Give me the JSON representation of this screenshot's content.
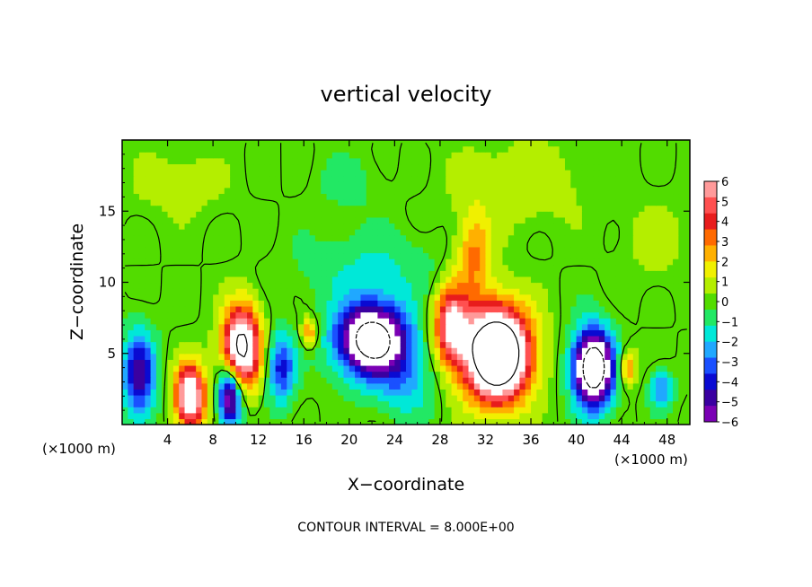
{
  "chart_data": {
    "type": "heatmap",
    "title": "vertical velocity",
    "xlabel": "X−coordinate",
    "ylabel": "Z−coordinate",
    "x_unit_left": "(×1000 m)",
    "x_unit_right": "(×1000 m)",
    "footer": "CONTOUR INTERVAL = 8.000E+00",
    "xlim": [
      0,
      50
    ],
    "ylim": [
      0,
      20
    ],
    "x_ticks": [
      4,
      8,
      12,
      16,
      20,
      24,
      28,
      32,
      36,
      40,
      44,
      48
    ],
    "x_tick_labels": [
      "4",
      "8",
      "12",
      "16",
      "20",
      "24",
      "28",
      "32",
      "36",
      "40",
      "44",
      "48"
    ],
    "y_ticks": [
      5,
      10,
      15
    ],
    "y_tick_labels": [
      "5",
      "10",
      "15"
    ],
    "colorbar": {
      "range": [
        -6,
        6
      ],
      "levels": [
        6,
        5,
        4,
        3,
        2,
        1,
        0,
        -1,
        -2,
        -3,
        -4,
        -5,
        -6
      ],
      "labels": [
        "6",
        "5",
        "4",
        "3",
        "2",
        "1",
        "0",
        "−1",
        "−2",
        "−3",
        "−4",
        "−5",
        "−6"
      ],
      "colors": [
        "#ff9a9a",
        "#ff5050",
        "#e81c1c",
        "#ff6a00",
        "#ffb000",
        "#f0f000",
        "#b4ee00",
        "#52dc00",
        "#22e864",
        "#00e8d8",
        "#20a8ff",
        "#1a50ff",
        "#0a0ad2",
        "#3a00a0",
        "#7a00b4"
      ]
    },
    "features": [
      {
        "x": 1.5,
        "z": 3.5,
        "w": -5,
        "sx": 1.4,
        "sz": 3.0
      },
      {
        "x": 6,
        "z": 2,
        "w": 8,
        "sx": 1.3,
        "sz": 2.2
      },
      {
        "x": 9.5,
        "z": 2,
        "w": -7,
        "sx": 1.0,
        "sz": 2.0
      },
      {
        "x": 10.5,
        "z": 5.5,
        "w": 9,
        "sx": 1.6,
        "sz": 2.8
      },
      {
        "x": 14,
        "z": 4,
        "w": -4,
        "sx": 1.2,
        "sz": 2.4
      },
      {
        "x": 16.5,
        "z": 6.5,
        "w": 3,
        "sx": 0.7,
        "sz": 1.0
      },
      {
        "x": 22,
        "z": 6,
        "w": -10,
        "sx": 3.0,
        "sz": 2.5
      },
      {
        "x": 25,
        "z": 3,
        "w": -2,
        "sx": 2.5,
        "sz": 2.5
      },
      {
        "x": 29,
        "z": 7,
        "w": 6,
        "sx": 1.5,
        "sz": 2.8
      },
      {
        "x": 33,
        "z": 5,
        "w": 13,
        "sx": 2.8,
        "sz": 3.2
      },
      {
        "x": 31,
        "z": 12,
        "w": 3,
        "sx": 1.5,
        "sz": 3.0
      },
      {
        "x": 41.5,
        "z": 4,
        "w": -11,
        "sx": 1.7,
        "sz": 2.6
      },
      {
        "x": 44.5,
        "z": 4,
        "w": 3,
        "sx": 0.8,
        "sz": 1.3
      },
      {
        "x": 47.5,
        "z": 2.5,
        "w": -3,
        "sx": 1.0,
        "sz": 1.3
      },
      {
        "x": 22,
        "z": 11,
        "w": -1.3,
        "sx": 6.0,
        "sz": 2.5
      },
      {
        "x": 35,
        "z": 17,
        "w": 1.0,
        "sx": 6.0,
        "sz": 3.0
      },
      {
        "x": 5,
        "z": 17,
        "w": 0.8,
        "sx": 4.0,
        "sz": 2.5
      },
      {
        "x": 20,
        "z": 17,
        "w": -0.7,
        "sx": 3.0,
        "sz": 2.0
      },
      {
        "x": 47,
        "z": 13,
        "w": 0.7,
        "sx": 3.0,
        "sz": 3.0
      }
    ]
  }
}
